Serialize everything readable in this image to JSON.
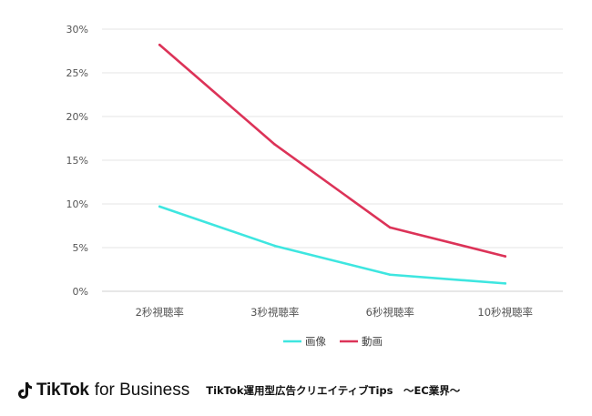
{
  "chart_data": {
    "type": "line",
    "categories": [
      "2秒視聴率",
      "3秒視聴率",
      "6秒視聴率",
      "10秒視聴率"
    ],
    "y_ticks": [
      "30%",
      "25%",
      "20%",
      "15%",
      "10%",
      "5%",
      "0%"
    ],
    "ylim": [
      0,
      30
    ],
    "grid": true,
    "legend_position": "bottom-center",
    "series": [
      {
        "name": "画像",
        "color": "#3ee6e0",
        "values": [
          9.7,
          5.2,
          1.9,
          0.9
        ]
      },
      {
        "name": "動画",
        "color": "#dc3358",
        "values": [
          28.2,
          16.8,
          7.3,
          4.0
        ]
      }
    ]
  },
  "footer": {
    "logo_main": "TikTok",
    "logo_sub": "for Business",
    "caption": "TikTok運用型広告クリエイティブTips　～EC業界～"
  }
}
